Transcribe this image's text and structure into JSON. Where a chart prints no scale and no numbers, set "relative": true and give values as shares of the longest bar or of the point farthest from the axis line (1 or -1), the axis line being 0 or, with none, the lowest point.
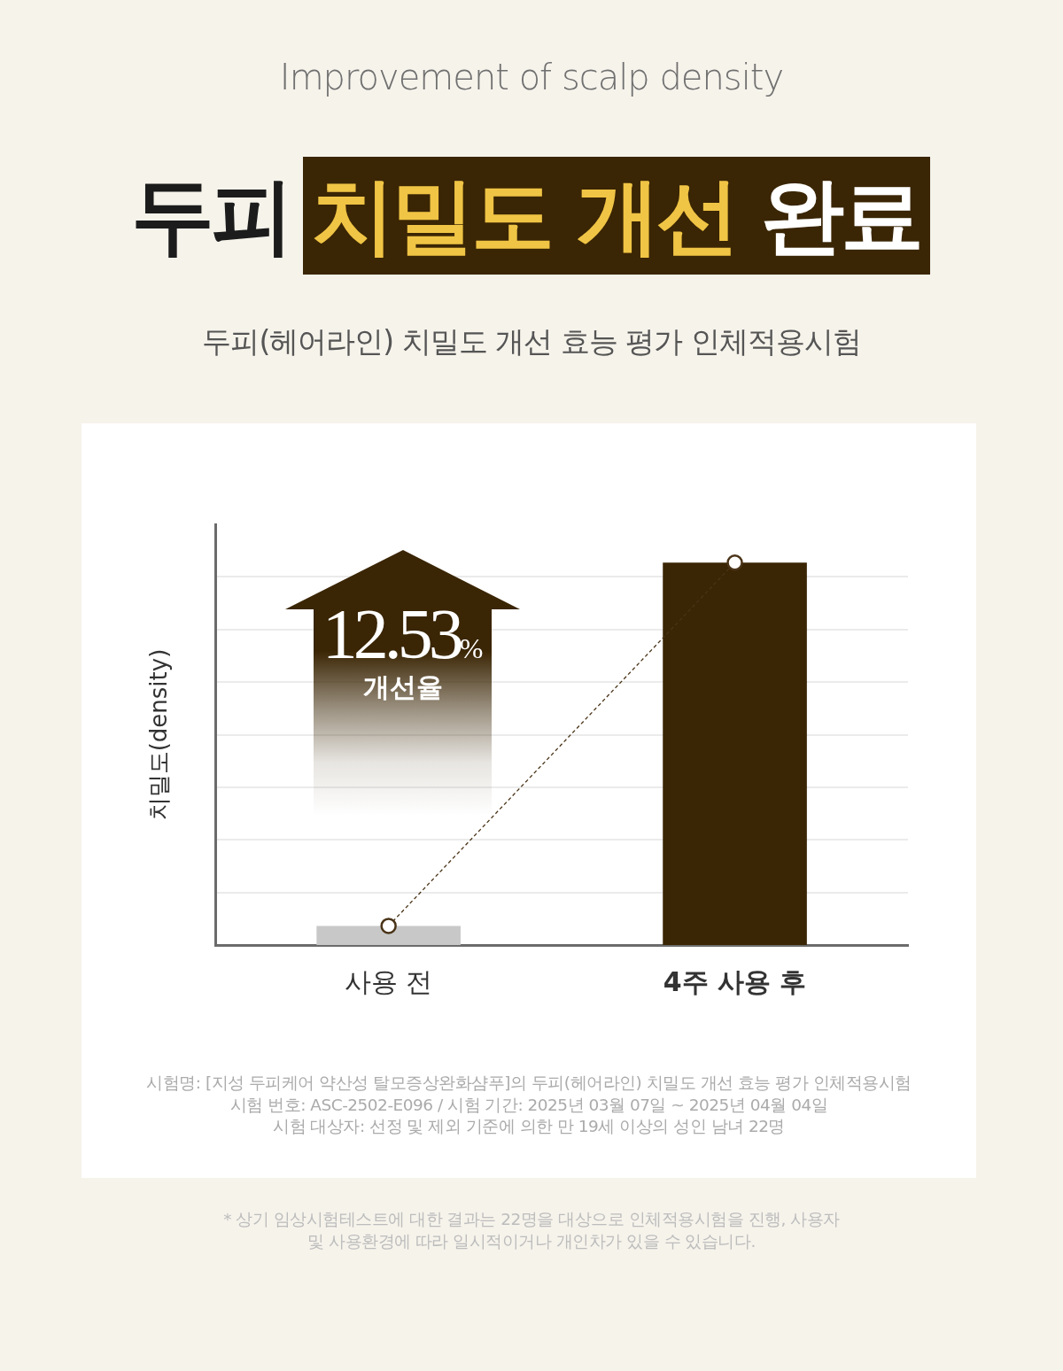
{
  "chart_data": {
    "type": "bar",
    "title": "두피 치밀도 개선 완료",
    "subtitle": "두피(헤어라인) 치밀도 개선 효능 평가 인체적용시험",
    "ylabel": "치밀도(density)",
    "categories": [
      "사용 전",
      "4주 사용 후"
    ],
    "relative": true,
    "grid": "y",
    "legend": false,
    "series": [
      {
        "colors": [
          "#c8c8c8",
          "#3a2504"
        ],
        "values": [
          0.05,
          1
        ]
      },
      {
        "type": "line",
        "color": "#4a3418",
        "values": [
          0.05,
          1
        ],
        "marker": "circle",
        "line_style": "dashed"
      }
    ],
    "annotations": [
      "Improvement of scalp density",
      "12.53%",
      "개선율",
      "시험명: [지성 두피케어 약산성 탈모증상완화샴푸]의 두피(헤어라인) 치밀도 개선 효능 평가 인체적용시험",
      "시험 번호: ASC-2502-E096 / 시험 기간: 2025년 03월 07일 ~ 2025년 04월 04일",
      "시험 대상자: 선정 및 제외 기준에 의한 만 19세 이상의 성인 남녀 22명",
      "* 상기 임상시험테스트에 대한 결과는 22명을 대상으로 인체적용시험을 진행, 사용자 및 사용환경에 따라 일시적이거나 개인차가 있을 수 있습니다."
    ]
  }
}
